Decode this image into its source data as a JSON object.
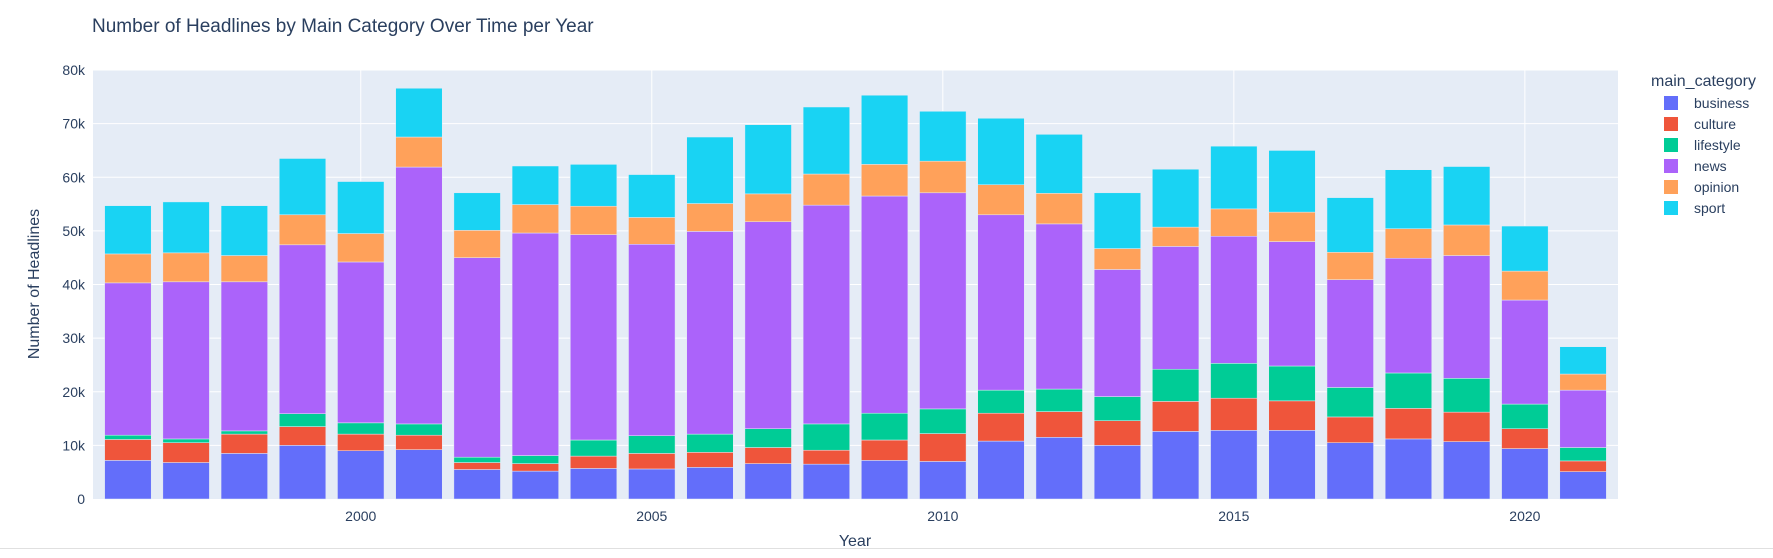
{
  "chart_data": {
    "type": "bar",
    "stacked": true,
    "title": "Number of Headlines by Main Category Over Time per Year",
    "xlabel": "Year",
    "ylabel": "Number of Headlines",
    "ylim": [
      0,
      80000
    ],
    "y_tick_values": [
      0,
      10000,
      20000,
      30000,
      40000,
      50000,
      60000,
      70000,
      80000
    ],
    "y_tick_labels": [
      "0",
      "10k",
      "20k",
      "30k",
      "40k",
      "50k",
      "60k",
      "70k",
      "80k"
    ],
    "x_tick_values": [
      2000,
      2005,
      2010,
      2015,
      2020
    ],
    "x_tick_labels": [
      "2000",
      "2005",
      "2010",
      "2015",
      "2020"
    ],
    "xlim": [
      1995.4,
      2021.6
    ],
    "grid": true,
    "legend_title": "main_category",
    "legend_position": "right",
    "x": [
      1996,
      1997,
      1998,
      1999,
      2000,
      2001,
      2002,
      2003,
      2004,
      2005,
      2006,
      2007,
      2008,
      2009,
      2010,
      2011,
      2012,
      2013,
      2014,
      2015,
      2016,
      2017,
      2018,
      2019,
      2020,
      2021
    ],
    "series": [
      {
        "name": "business",
        "color": "#636efa",
        "values": [
          7200,
          6800,
          8500,
          10000,
          9000,
          9200,
          5500,
          5200,
          5700,
          5600,
          5900,
          6600,
          6500,
          7200,
          7000,
          10800,
          11500,
          10000,
          12600,
          12800,
          12800,
          10500,
          11200,
          10700,
          9400,
          5100
        ]
      },
      {
        "name": "culture",
        "color": "#ef553b",
        "values": [
          3900,
          3700,
          3600,
          3500,
          3100,
          2700,
          1300,
          1400,
          2300,
          2900,
          2800,
          3000,
          2600,
          3800,
          5200,
          5200,
          4800,
          4600,
          5600,
          6000,
          5500,
          4800,
          5700,
          5500,
          3700,
          2000
        ]
      },
      {
        "name": "lifestyle",
        "color": "#00cc96",
        "values": [
          800,
          700,
          600,
          2400,
          2100,
          2100,
          1000,
          1500,
          3000,
          3300,
          3400,
          3500,
          4900,
          5000,
          4600,
          4300,
          4200,
          4500,
          6000,
          6500,
          6500,
          5500,
          6600,
          6300,
          4600,
          2500
        ]
      },
      {
        "name": "news",
        "color": "#ab63fa",
        "values": [
          28400,
          29300,
          27800,
          31500,
          30000,
          47900,
          37200,
          41500,
          38300,
          35700,
          37800,
          38600,
          40800,
          40500,
          40300,
          32700,
          30800,
          23700,
          22900,
          23700,
          23200,
          20100,
          21400,
          22900,
          19400,
          10700
        ]
      },
      {
        "name": "opinion",
        "color": "#ffa15a",
        "values": [
          5400,
          5400,
          4900,
          5600,
          5300,
          5600,
          5100,
          5300,
          5300,
          5000,
          5200,
          5200,
          5800,
          5900,
          5900,
          5600,
          5700,
          3900,
          3600,
          5100,
          5500,
          5100,
          5500,
          5700,
          5400,
          3000
        ]
      },
      {
        "name": "sport",
        "color": "#19d3f3",
        "values": [
          9000,
          9500,
          9300,
          10500,
          9700,
          9100,
          7000,
          7200,
          7800,
          8000,
          12400,
          12900,
          12500,
          12900,
          9300,
          12400,
          11000,
          10400,
          10800,
          11700,
          11500,
          10200,
          11000,
          10900,
          8400,
          5100
        ]
      }
    ]
  }
}
